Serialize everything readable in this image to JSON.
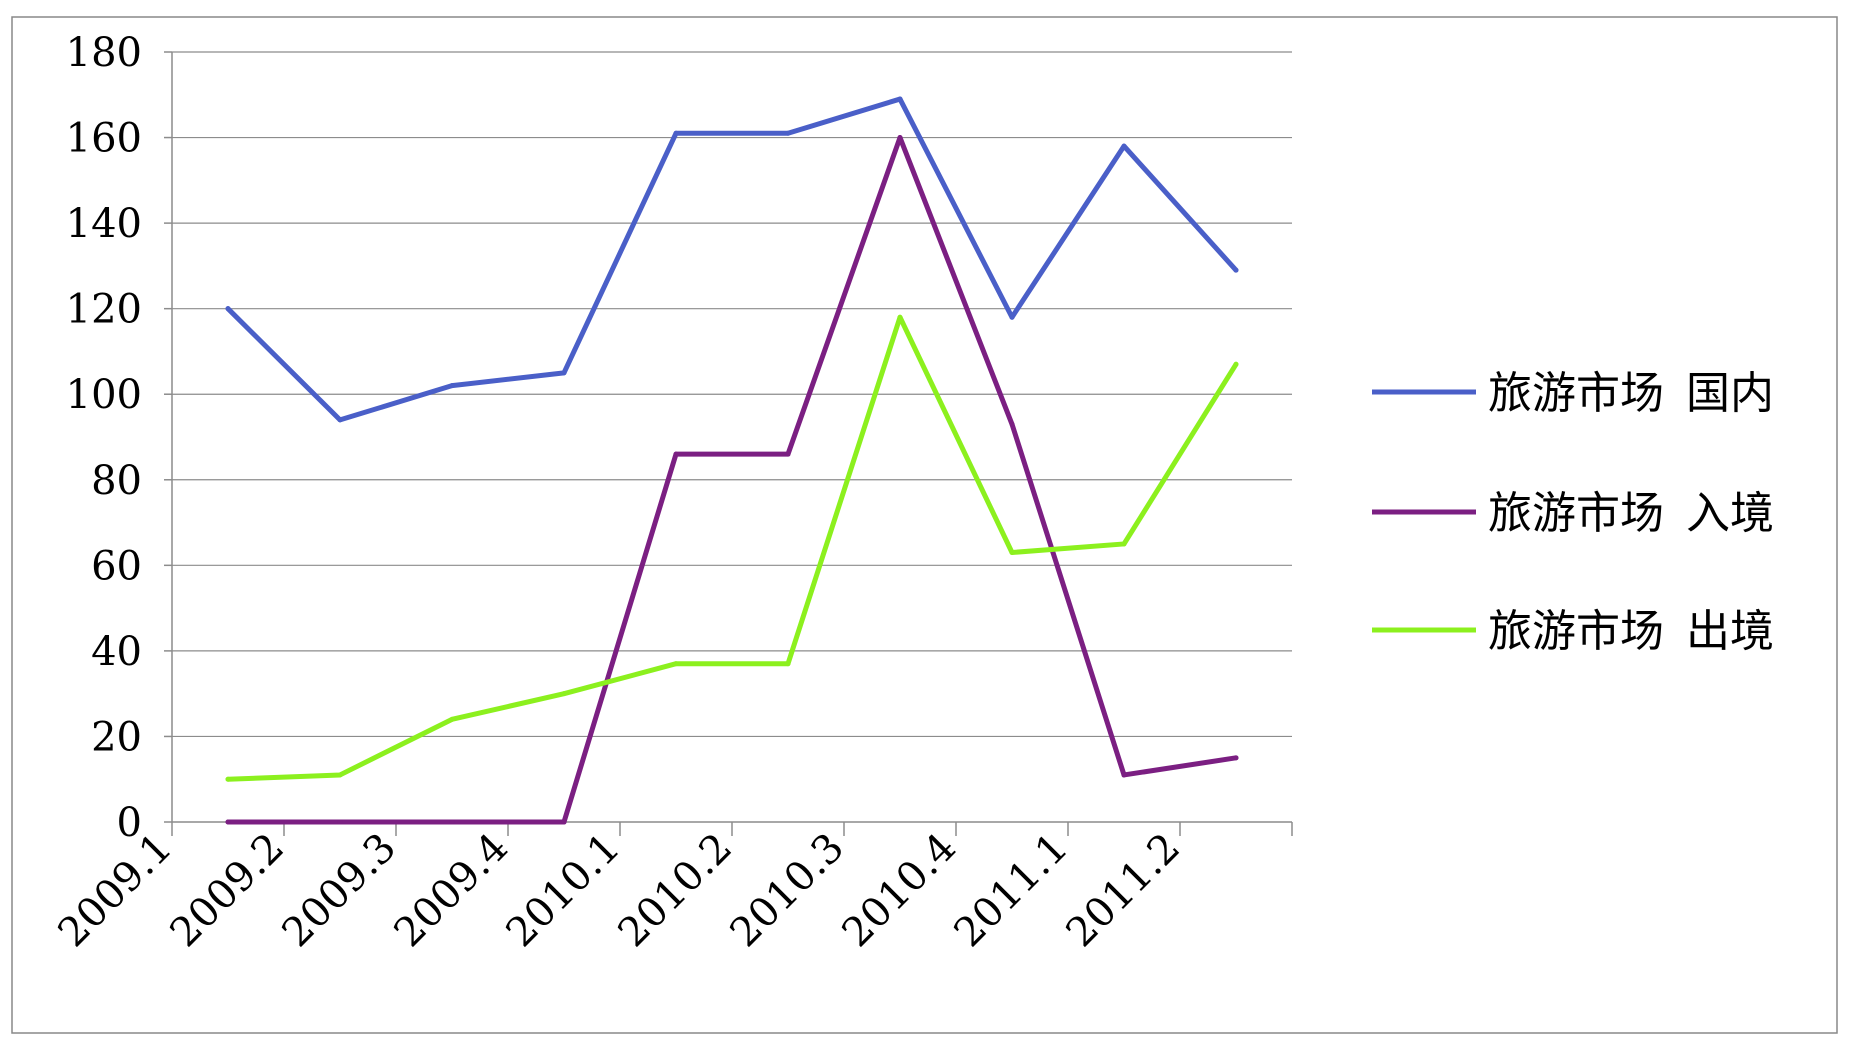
{
  "chart_data": {
    "type": "line",
    "title": "",
    "xlabel": "",
    "ylabel": "",
    "categories": [
      "2009.1",
      "2009.2",
      "2009.3",
      "2009.4",
      "2010.1",
      "2010.2",
      "2010.3",
      "2010.4",
      "2011.1",
      "2011.2"
    ],
    "ylim": [
      0,
      180
    ],
    "yticks": [
      0,
      20,
      40,
      60,
      80,
      100,
      120,
      140,
      160,
      180
    ],
    "grid": true,
    "legend_position": "right",
    "series": [
      {
        "name": "旅游市场 国内",
        "color": "#4A5FC8",
        "x": [
          0.5,
          1.5,
          2.5,
          3.5,
          4.5,
          5.5,
          6.5,
          7.5,
          8.5,
          9.5
        ],
        "values": [
          120,
          94,
          102,
          105,
          161,
          161,
          169,
          118,
          158,
          129
        ]
      },
      {
        "name": "旅游市场 入境",
        "color": "#7B1F82",
        "x": [
          0.5,
          1.5,
          2.5,
          3.5,
          4.5,
          5.5,
          6.5,
          7.5,
          8.5,
          9.5
        ],
        "values": [
          0,
          0,
          0,
          0,
          86,
          86,
          160,
          93,
          11,
          15
        ]
      },
      {
        "name": "旅游市场 出境",
        "color": "#8CF01E",
        "x": [
          0.5,
          1.5,
          2.5,
          3.5,
          4.5,
          5.5,
          6.5,
          7.5,
          8.5,
          9.5
        ],
        "values": [
          10,
          11,
          24,
          30,
          37,
          37,
          118,
          63,
          65,
          107
        ]
      }
    ]
  }
}
